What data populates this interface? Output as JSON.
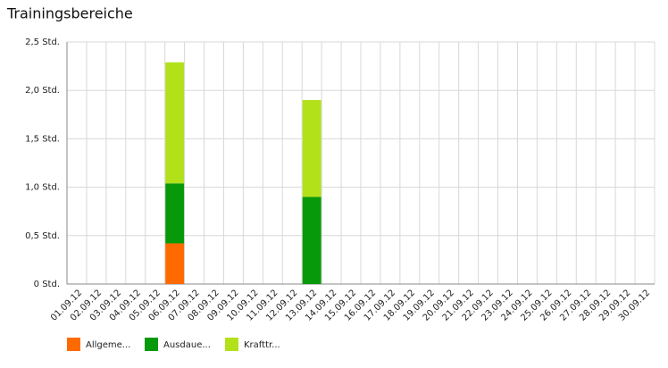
{
  "chart_data": {
    "type": "stacked-bar",
    "title": "Trainingsbereiche",
    "categories": [
      "01.09.12",
      "02.09.12",
      "03.09.12",
      "04.09.12",
      "05.09.12",
      "06.09.12",
      "07.09.12",
      "08.09.12",
      "09.09.12",
      "10.09.12",
      "11.09.12",
      "12.09.12",
      "13.09.12",
      "14.09.12",
      "15.09.12",
      "16.09.12",
      "17.09.12",
      "18.09.12",
      "19.09.12",
      "20.09.12",
      "21.09.12",
      "22.09.12",
      "23.09.12",
      "24.09.12",
      "25.09.12",
      "26.09.12",
      "27.09.12",
      "28.09.12",
      "29.09.12",
      "30.09.12"
    ],
    "series": [
      {
        "name": "Allgeme...",
        "color": "#ff6a00",
        "values": [
          0,
          0,
          0,
          0,
          0,
          0.42,
          0,
          0,
          0,
          0,
          0,
          0,
          0,
          0,
          0,
          0,
          0,
          0,
          0,
          0,
          0,
          0,
          0,
          0,
          0,
          0,
          0,
          0,
          0,
          0
        ]
      },
      {
        "name": "Ausdaue...",
        "color": "#08990a",
        "values": [
          0,
          0,
          0,
          0,
          0,
          0.62,
          0,
          0,
          0,
          0,
          0,
          0,
          0.9,
          0,
          0,
          0,
          0,
          0,
          0,
          0,
          0,
          0,
          0,
          0,
          0,
          0,
          0,
          0,
          0,
          0
        ]
      },
      {
        "name": "Krafttr...",
        "color": "#b2e11a",
        "values": [
          0,
          0,
          0,
          0,
          0,
          1.25,
          0,
          0,
          0,
          0,
          0,
          0,
          1.0,
          0,
          0,
          0,
          0,
          0,
          0,
          0,
          0,
          0,
          0,
          0,
          0,
          0,
          0,
          0,
          0,
          0
        ]
      }
    ],
    "ylim": [
      0,
      2.5
    ],
    "yticks": [
      {
        "value": 0,
        "label": "0 Std."
      },
      {
        "value": 0.5,
        "label": "0,5 Std."
      },
      {
        "value": 1,
        "label": "1,0 Std."
      },
      {
        "value": 1.5,
        "label": "1,5 Std."
      },
      {
        "value": 2,
        "label": "2,0 Std."
      },
      {
        "value": 2.5,
        "label": "2,5 Std."
      }
    ],
    "grid": true
  }
}
